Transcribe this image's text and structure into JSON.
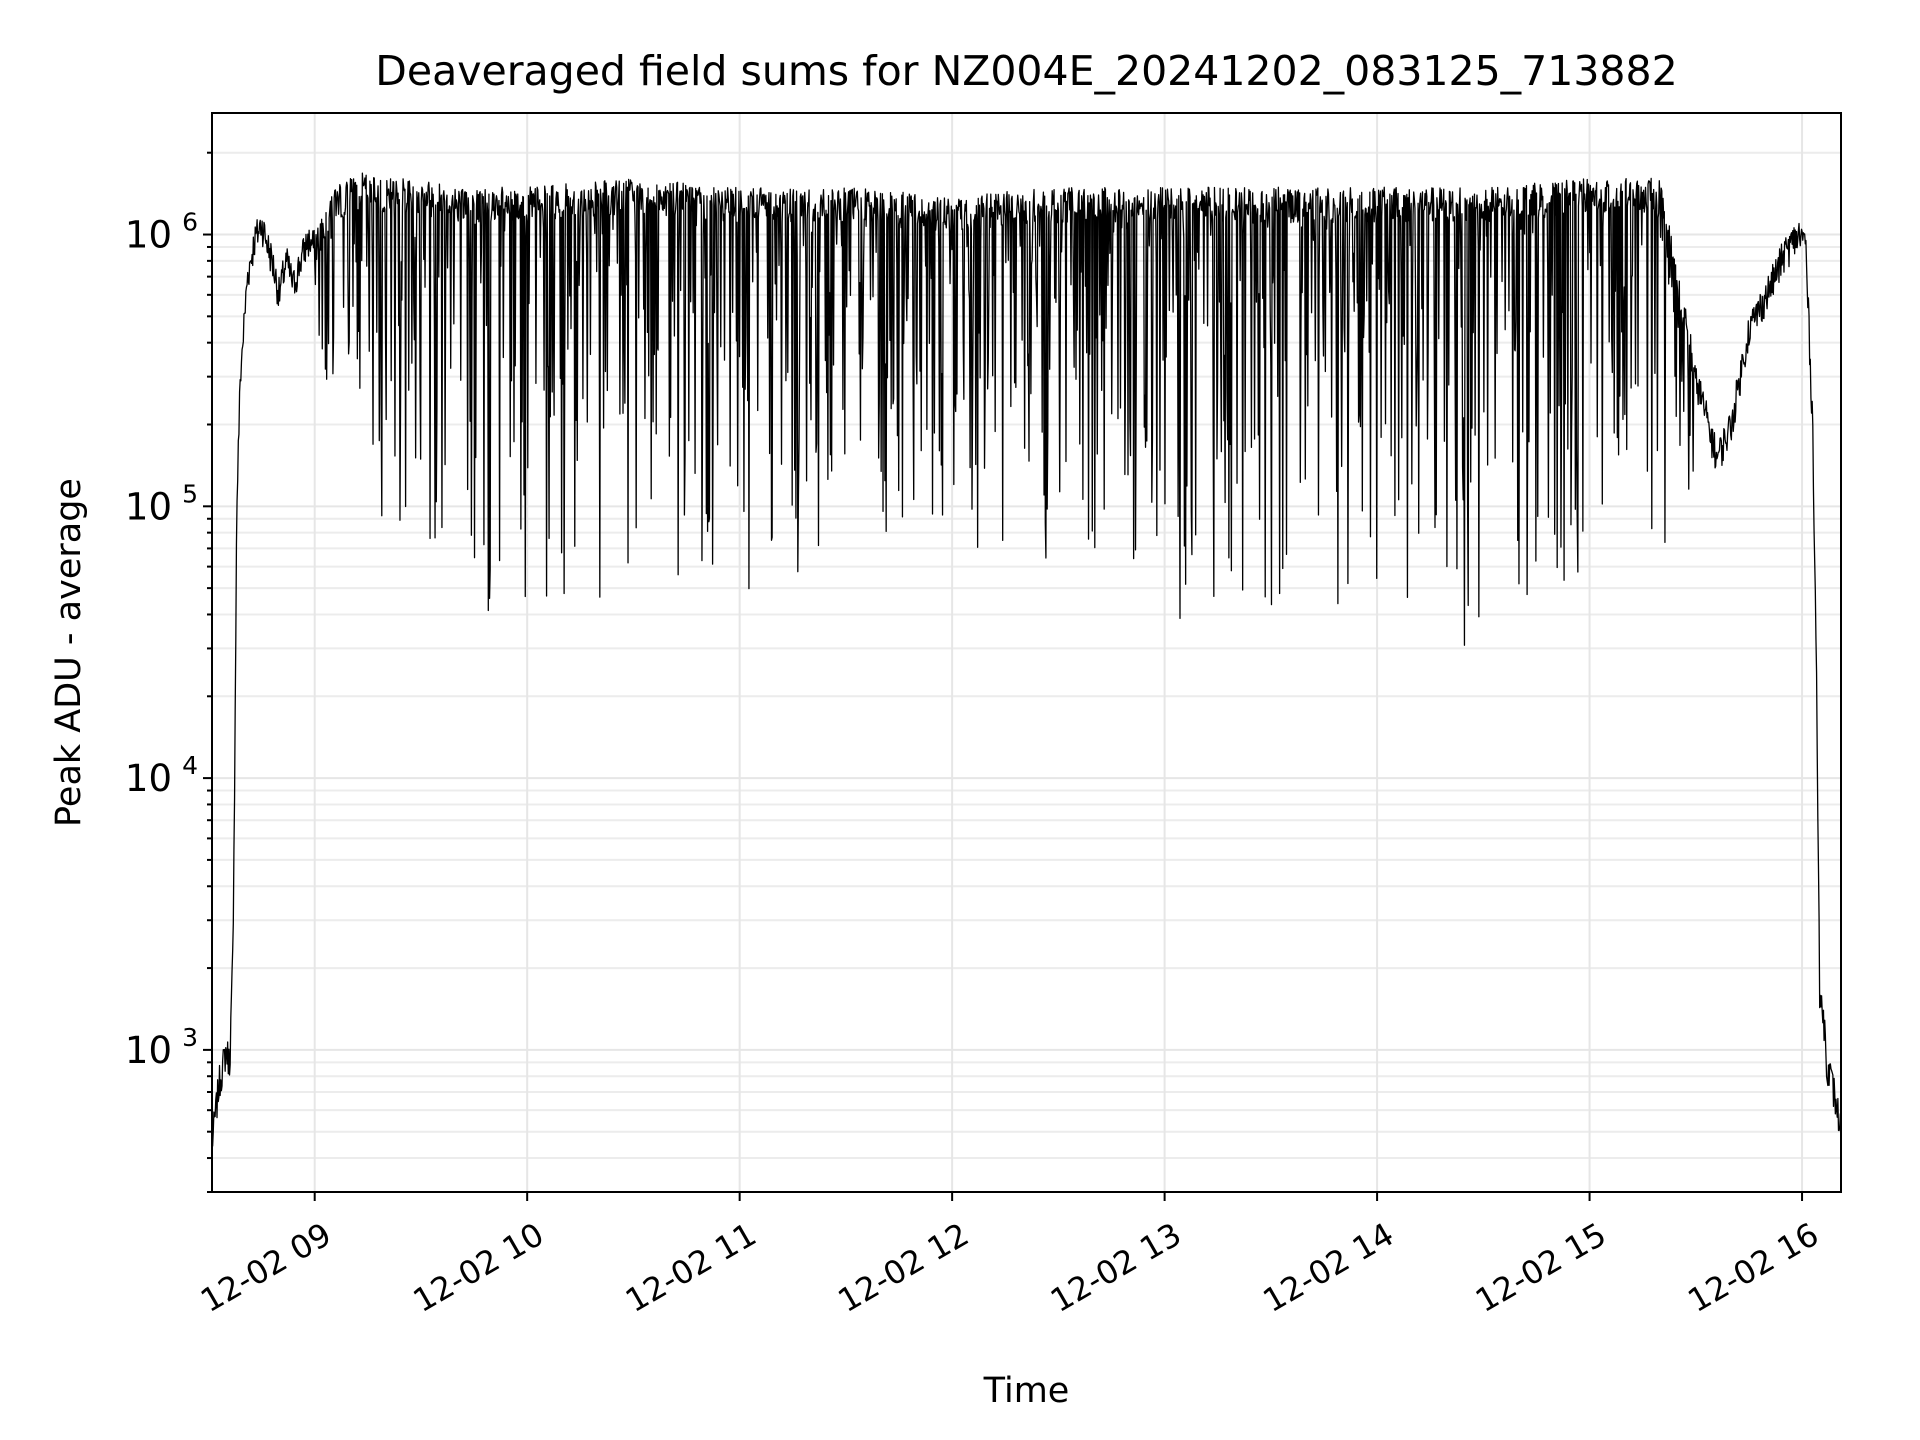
{
  "chart_data": {
    "type": "line",
    "title": "Deaveraged field sums for NZ004E_20241202_083125_713882",
    "xlabel": "Time",
    "ylabel": "Peak ADU - average",
    "yscale": "log",
    "ylim": [
      300,
      2800000
    ],
    "xlim": [
      "2024-12-02 08:31",
      "2024-12-02 16:11"
    ],
    "grid": true,
    "line_color": "#000000",
    "xticks": [
      {
        "value": "2024-12-02 09:00",
        "label": "12-02 09"
      },
      {
        "value": "2024-12-02 10:00",
        "label": "12-02 10"
      },
      {
        "value": "2024-12-02 11:00",
        "label": "12-02 11"
      },
      {
        "value": "2024-12-02 12:00",
        "label": "12-02 12"
      },
      {
        "value": "2024-12-02 13:00",
        "label": "12-02 13"
      },
      {
        "value": "2024-12-02 14:00",
        "label": "12-02 14"
      },
      {
        "value": "2024-12-02 15:00",
        "label": "12-02 15"
      },
      {
        "value": "2024-12-02 16:00",
        "label": "12-02 16"
      }
    ],
    "yticks": [
      {
        "value": 1000,
        "base": "10",
        "exp": "3"
      },
      {
        "value": 10000,
        "base": "10",
        "exp": "4"
      },
      {
        "value": 100000,
        "base": "10",
        "exp": "5"
      },
      {
        "value": 1000000,
        "base": "10",
        "exp": "6"
      }
    ],
    "series": [
      {
        "x": [
          "2024-12-02 08:31",
          "2024-12-02 08:33",
          "2024-12-02 08:35",
          "2024-12-02 08:36",
          "2024-12-02 08:37",
          "2024-12-02 08:38",
          "2024-12-02 08:39",
          "2024-12-02 08:41",
          "2024-12-02 08:43",
          "2024-12-02 08:45",
          "2024-12-02 08:48",
          "2024-12-02 08:50",
          "2024-12-02 08:51",
          "2024-12-02 08:52",
          "2024-12-02 08:54",
          "2024-12-02 08:56",
          "2024-12-02 08:58",
          "2024-12-02 09:00",
          "2024-12-02 09:05",
          "2024-12-02 09:10",
          "2024-12-02 09:15",
          "2024-12-02 09:20",
          "2024-12-02 09:30",
          "2024-12-02 09:40",
          "2024-12-02 09:50",
          "2024-12-02 10:00",
          "2024-12-02 10:30",
          "2024-12-02 11:00",
          "2024-12-02 11:30",
          "2024-12-02 12:00",
          "2024-12-02 12:30",
          "2024-12-02 12:45",
          "2024-12-02 13:00",
          "2024-12-02 13:30",
          "2024-12-02 14:00",
          "2024-12-02 14:30",
          "2024-12-02 15:00",
          "2024-12-02 15:20",
          "2024-12-02 15:30",
          "2024-12-02 15:36",
          "2024-12-02 15:40",
          "2024-12-02 15:45",
          "2024-12-02 15:50",
          "2024-12-02 15:55",
          "2024-12-02 15:59",
          "2024-12-02 16:01",
          "2024-12-02 16:03",
          "2024-12-02 16:04",
          "2024-12-02 16:05",
          "2024-12-02 16:06",
          "2024-12-02 16:07",
          "2024-12-02 16:08",
          "2024-12-02 16:09",
          "2024-12-02 16:10",
          "2024-12-02 16:11"
        ],
        "y": [
          450,
          750,
          1000,
          900,
          2500,
          100000,
          300000,
          700000,
          950000,
          1100000,
          800000,
          600000,
          700000,
          800000,
          650000,
          800000,
          950000,
          900000,
          1300000,
          1400000,
          1500000,
          1400000,
          1400000,
          1300000,
          1300000,
          1300000,
          1400000,
          1300000,
          1300000,
          1200000,
          1300000,
          1300000,
          1300000,
          1300000,
          1300000,
          1300000,
          1400000,
          1400000,
          300000,
          150000,
          200000,
          450000,
          600000,
          850000,
          1000000,
          950000,
          200000,
          30000,
          1500,
          1400,
          900,
          800,
          700,
          600,
          500
        ],
        "min_envelope_x": [
          "2024-12-02 09:00",
          "2024-12-02 09:15",
          "2024-12-02 09:30",
          "2024-12-02 09:45",
          "2024-12-02 10:00",
          "2024-12-02 10:30",
          "2024-12-02 11:00",
          "2024-12-02 11:30",
          "2024-12-02 12:00",
          "2024-12-02 12:30",
          "2024-12-02 13:00",
          "2024-12-02 13:30",
          "2024-12-02 13:50",
          "2024-12-02 14:00",
          "2024-12-02 14:30",
          "2024-12-02 15:00",
          "2024-12-02 15:20",
          "2024-12-02 15:30"
        ],
        "min_envelope_y": [
          300000,
          100000,
          60000,
          40000,
          40000,
          45000,
          45000,
          55000,
          60000,
          50000,
          40000,
          30000,
          28000,
          28000,
          30000,
          35000,
          50000,
          80000
        ]
      }
    ]
  }
}
